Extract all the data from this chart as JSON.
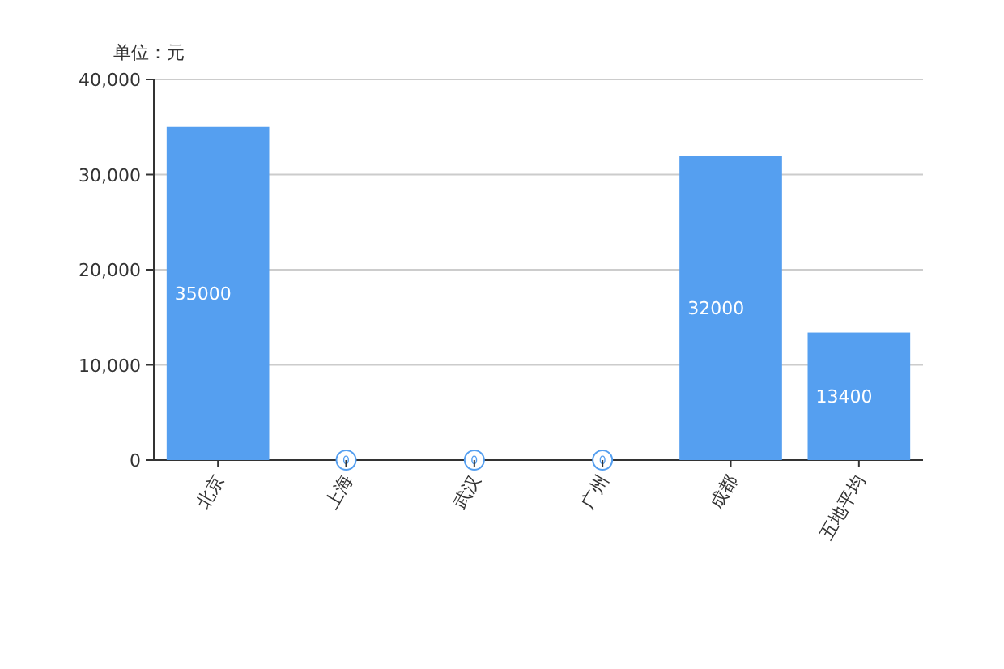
{
  "chart_data": {
    "type": "bar",
    "ylabel": "单位：元",
    "categories": [
      "北京",
      "上海",
      "武汉",
      "广州",
      "成都",
      "五地平均"
    ],
    "values": [
      35000,
      0,
      0,
      0,
      32000,
      13400
    ],
    "color": "#559ff0",
    "ylim": [
      0,
      40000
    ],
    "yticks": [
      0,
      {
        "value": 10000,
        "label": "10,000"
      },
      {
        "value": 20000,
        "label": "20,000"
      },
      {
        "value": 30000,
        "label": "30,000"
      },
      {
        "value": 40000,
        "label": "40,000"
      }
    ],
    "grid": "y",
    "data_labels": true
  }
}
